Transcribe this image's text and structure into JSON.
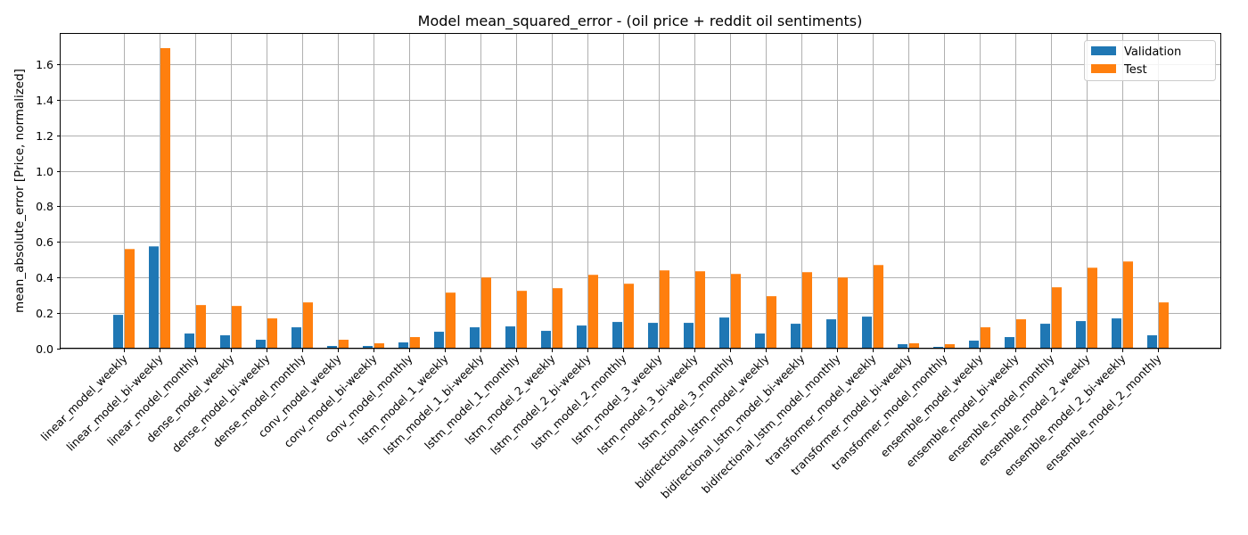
{
  "chart_data": {
    "type": "bar",
    "title": "Model mean_squared_error - (oil price + reddit oil sentiments)",
    "xlabel": "",
    "ylabel": "mean_absolute_error [Price, normalized]",
    "ylim": [
      0,
      1.77
    ],
    "yticks": [
      0.0,
      0.2,
      0.4,
      0.6,
      0.8,
      1.0,
      1.2,
      1.4,
      1.6
    ],
    "grid": true,
    "legend_position": "top-right",
    "categories": [
      "linear_model_weekly",
      "linear_model_bi-weekly",
      "linear_model_monthly",
      "dense_model_weekly",
      "dense_model_bi-weekly",
      "dense_model_monthly",
      "conv_model_weekly",
      "conv_model_bi-weekly",
      "conv_model_monthly",
      "lstm_model_1_weekly",
      "lstm_model_1_bi-weekly",
      "lstm_model_1_monthly",
      "lstm_model_2_weekly",
      "lstm_model_2_bi-weekly",
      "lstm_model_2_monthly",
      "lstm_model_3_weekly",
      "lstm_model_3_bi-weekly",
      "lstm_model_3_monthly",
      "bidirectional_lstm_model_weekly",
      "bidirectional_lstm_model_bi-weekly",
      "bidirectional_lstm_model_monthly",
      "transformer_model_weekly",
      "transformer_model_bi-weekly",
      "transformer_model_monthly",
      "ensemble_model_weekly",
      "ensemble_model_bi-weekly",
      "ensemble_model_monthly",
      "ensemble_model_2_weekly",
      "ensemble_model_2_bi-weekly",
      "ensemble_model_2_monthly"
    ],
    "series": [
      {
        "name": "Validation",
        "color": "#1f77b4",
        "values": [
          0.19,
          0.575,
          0.085,
          0.075,
          0.05,
          0.12,
          0.015,
          0.015,
          0.035,
          0.095,
          0.12,
          0.125,
          0.1,
          0.13,
          0.15,
          0.145,
          0.145,
          0.175,
          0.085,
          0.14,
          0.165,
          0.18,
          0.025,
          0.01,
          0.045,
          0.065,
          0.14,
          0.155,
          0.17,
          0.075
        ]
      },
      {
        "name": "Test",
        "color": "#ff7f0e",
        "values": [
          0.56,
          1.69,
          0.245,
          0.24,
          0.17,
          0.26,
          0.05,
          0.03,
          0.065,
          0.315,
          0.4,
          0.325,
          0.34,
          0.415,
          0.365,
          0.44,
          0.435,
          0.42,
          0.295,
          0.43,
          0.4,
          0.47,
          0.03,
          0.025,
          0.12,
          0.165,
          0.345,
          0.455,
          0.49,
          0.26
        ]
      }
    ]
  }
}
